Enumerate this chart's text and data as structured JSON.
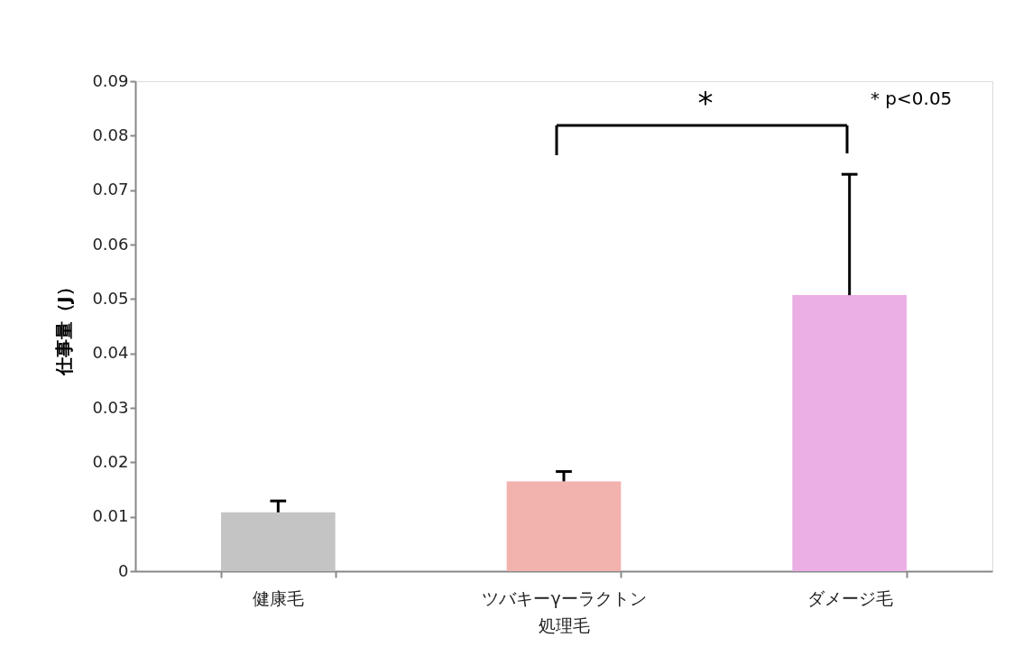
{
  "chart_data": {
    "type": "bar",
    "ylabel": "仕事量（J）",
    "categories": [
      "健康毛",
      "ツバキーγーラクトン処理毛",
      "ダメージ毛"
    ],
    "values": [
      0.0108,
      0.0165,
      0.0507
    ],
    "errors": [
      [
        0.0108,
        0.0129
      ],
      [
        0.0165,
        0.0183
      ],
      [
        0.0507,
        0.0729
      ]
    ],
    "colors": [
      "#c4c4c4",
      "#f2b2ae",
      "#ebaee5"
    ],
    "ylim": [
      0,
      0.09
    ],
    "yticks": [
      0,
      0.01,
      0.02,
      0.03,
      0.04,
      0.05,
      0.06,
      0.07,
      0.08,
      0.09
    ],
    "grid": false,
    "legend": false,
    "annotations": [
      "*",
      "* p<0.05"
    ]
  }
}
